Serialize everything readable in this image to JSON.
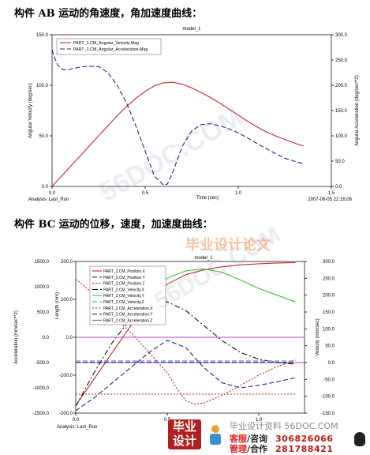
{
  "headings": {
    "first": "构件 AB 运动的角速度，角加速度曲线：",
    "second": "构件 BC 运动的位移，速度，加速度曲线："
  },
  "chart_data": [
    {
      "type": "line",
      "title": "model_1",
      "xlabel": "Time (sec)",
      "ylabel": "Angular Velocity (deg/sec)",
      "y2label": "Angular Acceleration (deg/sec**2)",
      "xlim": [
        0.0,
        1.5
      ],
      "ylim": [
        0.0,
        150.0
      ],
      "y2lim": [
        0.0,
        300.0
      ],
      "xticks": [
        "0.0",
        "0.5",
        "1.0",
        "1.5"
      ],
      "yticks": [
        "0.0",
        "50.0",
        "100.0",
        "150.0"
      ],
      "y2ticks": [
        "0.0",
        "50.0",
        "100.0",
        "150.0",
        "200.0",
        "250.0",
        "300.0"
      ],
      "footer_left": "Analysis:  Last_Run",
      "footer_right": "2007-06-05 22:16:06",
      "legend_position": "top-left",
      "series": [
        {
          "name": "PART_1.CM_Angular_Velocity.Mag",
          "axis": "left",
          "color": "#c0282d",
          "style": "solid",
          "x": [
            0.0,
            0.05,
            0.1,
            0.15,
            0.2,
            0.25,
            0.3,
            0.35,
            0.4,
            0.45,
            0.5,
            0.55,
            0.6,
            0.65,
            0.7,
            0.75,
            0.8,
            0.85,
            0.9,
            0.95,
            1.0,
            1.05,
            1.1,
            1.15,
            1.2,
            1.25,
            1.3,
            1.35
          ],
          "y": [
            0.0,
            10.0,
            20.0,
            30.0,
            40.0,
            50.0,
            60.0,
            70.0,
            79.0,
            87.0,
            94.0,
            99.5,
            102.5,
            103.0,
            101.0,
            97.5,
            93.0,
            88.0,
            82.5,
            76.5,
            70.5,
            64.5,
            59.0,
            54.0,
            50.0,
            46.5,
            43.0,
            40.0
          ]
        },
        {
          "name": "PART_1.CM_Angular_Acceleration.Mag",
          "axis": "right",
          "color": "#24248c",
          "style": "dashed",
          "x": [
            0.0,
            0.01,
            0.03,
            0.06,
            0.1,
            0.15,
            0.2,
            0.25,
            0.3,
            0.35,
            0.4,
            0.45,
            0.5,
            0.55,
            0.6,
            0.62,
            0.65,
            0.7,
            0.75,
            0.8,
            0.85,
            0.9,
            0.95,
            1.0,
            1.05,
            1.1,
            1.15,
            1.2,
            1.25,
            1.3,
            1.35
          ],
          "y": [
            270.0,
            258.0,
            240.0,
            231.0,
            232.0,
            236.0,
            238.0,
            237.0,
            225.0,
            200.0,
            165.0,
            120.0,
            70.0,
            20.0,
            2.0,
            5.0,
            30.0,
            80.0,
            110.0,
            122.0,
            124.0,
            120.0,
            114.0,
            106.0,
            96.0,
            85.0,
            75.0,
            65.0,
            56.0,
            50.0,
            45.0
          ]
        }
      ]
    },
    {
      "type": "line",
      "title": "model_1",
      "xlabel": "Analysis:  Last_Run",
      "ylabel_outer": "Acceleration (mm/sec**2)",
      "ylabel_inner": "Length (mm)",
      "y2label": "Velocity (mm/sec)",
      "xlim": [
        0.0,
        1.25
      ],
      "ylim_outer": [
        -1500.0,
        1500.0
      ],
      "ylim_inner": [
        -200.0,
        200.0
      ],
      "y2lim": [
        -150.0,
        300.0
      ],
      "xticks": [
        "0.0",
        "0.5",
        "1.0"
      ],
      "yticks_outer": [
        "-1500.0",
        "-1000.0",
        "-500.0",
        "0.0",
        "500.0",
        "1000.0",
        "1500.0"
      ],
      "yticks_inner": [
        "-200.0",
        "-100.0",
        "0.0",
        "100.0",
        "200.0"
      ],
      "y2ticks": [
        "300.0",
        "250.0",
        "200.0",
        "150.0",
        "100.0",
        "50.0",
        "0.0",
        "-50.0",
        "-100.0",
        "-150.0"
      ],
      "legend_position": "top-left",
      "series": [
        {
          "name": "PART_2.CM_Position.X",
          "axis": "inner",
          "color": "#c0282d",
          "style": "solid",
          "x": [
            0.0,
            0.1,
            0.2,
            0.3,
            0.4,
            0.5,
            0.6,
            0.7,
            0.8,
            0.9,
            1.0,
            1.1,
            1.2
          ],
          "y": [
            -180.0,
            -110.0,
            -40.0,
            30.0,
            95.0,
            140.0,
            165.0,
            178.0,
            186.0,
            191.0,
            194.0,
            196.0,
            197.0
          ]
        },
        {
          "name": "PART_2.CM_Position.Y",
          "axis": "inner",
          "color": "#24248c",
          "style": "dashed",
          "x": [
            0.0,
            1.2
          ],
          "y": [
            -66.0,
            -66.0
          ]
        },
        {
          "name": "PART_2.CM_Position.Z",
          "axis": "inner",
          "color": "#d02020",
          "style": "dotted",
          "x": [
            0.0,
            1.2
          ],
          "y": [
            -150.0,
            -150.0
          ]
        },
        {
          "name": "PART_2.CM_Velocity.X",
          "axis": "right",
          "color": "#101010",
          "style": "dashdot",
          "x": [
            0.0,
            0.1,
            0.2,
            0.3,
            0.4,
            0.5,
            0.6,
            0.7,
            0.8,
            0.9,
            1.0,
            1.1,
            1.2
          ],
          "y": [
            -130.0,
            -30.0,
            60.0,
            130.0,
            175.0,
            180.0,
            155.0,
            110.0,
            65.0,
            30.0,
            10.0,
            0.0,
            -5.0
          ]
        },
        {
          "name": "PART_2.CM_Velocity.Y",
          "axis": "right",
          "color": "#3ac43a",
          "style": "solid",
          "x": [
            0.35,
            0.4,
            0.5,
            0.6,
            0.7,
            0.8,
            0.9,
            1.0,
            1.1,
            1.2
          ],
          "y": [
            170.0,
            205.0,
            250.0,
            272.0,
            278.0,
            268.0,
            245.0,
            220.0,
            200.0,
            180.0
          ]
        },
        {
          "name": "PART_2.CM_Velocity.Z",
          "axis": "right",
          "color": "#4a8acc",
          "style": "dashed",
          "x": [
            0.0,
            1.2
          ],
          "y": [
            5.0,
            5.0
          ]
        },
        {
          "name": "PART_2.CM_Acceleration.X",
          "axis": "outer",
          "color": "#d02020",
          "style": "dotted",
          "x": [
            0.0,
            0.1,
            0.2,
            0.3,
            0.4,
            0.5,
            0.55,
            0.6,
            0.65,
            0.7,
            0.8,
            0.9,
            1.0,
            1.1,
            1.2
          ],
          "y": [
            1150.0,
            850.0,
            420.0,
            100.0,
            -300.0,
            -700.0,
            -1000.0,
            -1250.0,
            -1320.0,
            -1300.0,
            -1150.0,
            -950.0,
            -750.0,
            -580.0,
            -450.0
          ]
        },
        {
          "name": "PART_2.CM_Acceleration.Y",
          "axis": "outer",
          "color": "#2020a0",
          "style": "dashed",
          "x": [
            0.0,
            0.1,
            0.2,
            0.3,
            0.4,
            0.5,
            0.6,
            0.7,
            0.8,
            0.9,
            1.0,
            1.1,
            1.2
          ],
          "y": [
            -1450.0,
            -1200.0,
            -900.0,
            -600.0,
            -300.0,
            -60.0,
            -200.0,
            -600.0,
            -900.0,
            -1000.0,
            -950.0,
            -880.0,
            -800.0
          ]
        },
        {
          "name": "PART_2.CM_Acceleration.Z",
          "axis": "outer",
          "color": "#c040c0",
          "style": "solid",
          "x": [
            0.0,
            1.2
          ],
          "y": [
            0.0,
            0.0
          ]
        }
      ],
      "reference_lines": [
        {
          "axis": "outer",
          "value": 0.0,
          "color": "#c040c0"
        },
        {
          "axis": "outer",
          "value": -500.0,
          "color": "#c040c0"
        }
      ]
    }
  ],
  "watermarks": {
    "site_large": "56DOC.COM",
    "site_small": "56DOC.COM",
    "banner": "毕业设计论文"
  },
  "footer": {
    "brand_line1": "毕业",
    "brand_line2": "设计",
    "top_text": "毕业设计资料 56DOC.COM",
    "row1_label_a": "客服",
    "row1_label_b": "/咨询",
    "row1_number": "306826066",
    "row2_label_a": "管理",
    "row2_label_b": "/合作",
    "row2_number": "281788421"
  },
  "colors": {
    "plot_border": "#4a4a4a",
    "grid": "#d8d8d8",
    "axis_text": "#000000"
  }
}
